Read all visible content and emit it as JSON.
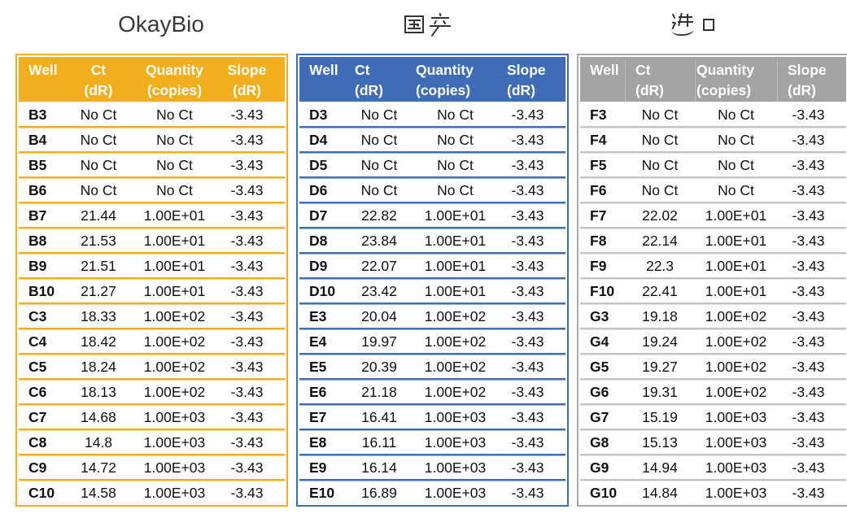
{
  "figure": {
    "background": "#FFFFFF",
    "title_color": "#3A3A3A"
  },
  "chart_data": [
    {
      "type": "table",
      "title": "OkayBio",
      "theme": {
        "header_bg": "#F1AE1D",
        "header_text": "#FFFFFF",
        "row_line": "#F1AE1D",
        "outer_border": "#F1AE1D"
      },
      "header_align": "center",
      "header_separators": false,
      "columns": [
        {
          "line1": "Well",
          "line2": ""
        },
        {
          "line1": "Ct",
          "line2": "(dR)"
        },
        {
          "line1": "Quantity",
          "line2": "(copies)"
        },
        {
          "line1": "Slope",
          "line2": "(dR)"
        }
      ],
      "rows": [
        [
          "B3",
          "No Ct",
          "No Ct",
          "-3.43"
        ],
        [
          "B4",
          "No Ct",
          "No Ct",
          "-3.43"
        ],
        [
          "B5",
          "No Ct",
          "No Ct",
          "-3.43"
        ],
        [
          "B6",
          "No Ct",
          "No Ct",
          "-3.43"
        ],
        [
          "B7",
          "21.44",
          "1.00E+01",
          "-3.43"
        ],
        [
          "B8",
          "21.53",
          "1.00E+01",
          "-3.43"
        ],
        [
          "B9",
          "21.51",
          "1.00E+01",
          "-3.43"
        ],
        [
          "B10",
          "21.27",
          "1.00E+01",
          "-3.43"
        ],
        [
          "C3",
          "18.33",
          "1.00E+02",
          "-3.43"
        ],
        [
          "C4",
          "18.42",
          "1.00E+02",
          "-3.43"
        ],
        [
          "C5",
          "18.24",
          "1.00E+02",
          "-3.43"
        ],
        [
          "C6",
          "18.13",
          "1.00E+02",
          "-3.43"
        ],
        [
          "C7",
          "14.68",
          "1.00E+03",
          "-3.43"
        ],
        [
          "C8",
          "14.8",
          "1.00E+03",
          "-3.43"
        ],
        [
          "C9",
          "14.72",
          "1.00E+03",
          "-3.43"
        ],
        [
          "C10",
          "14.58",
          "1.00E+03",
          "-3.43"
        ]
      ]
    },
    {
      "type": "table",
      "title": "国产",
      "theme": {
        "header_bg": "#3E6DB5",
        "header_text": "#FFFFFF",
        "row_line": "#3E6DB5",
        "outer_border": "#3E6DB5"
      },
      "header_align": "left",
      "header_separators": false,
      "columns": [
        {
          "line1": "Well",
          "line2": ""
        },
        {
          "line1": "Ct",
          "line2": "(dR)"
        },
        {
          "line1": "Quantity",
          "line2": "(copies)"
        },
        {
          "line1": "Slope",
          "line2": "(dR)"
        }
      ],
      "rows": [
        [
          "D3",
          "No Ct",
          "No Ct",
          "-3.43"
        ],
        [
          "D4",
          "No Ct",
          "No Ct",
          "-3.43"
        ],
        [
          "D5",
          "No Ct",
          "No Ct",
          "-3.43"
        ],
        [
          "D6",
          "No Ct",
          "No Ct",
          "-3.43"
        ],
        [
          "D7",
          "22.82",
          "1.00E+01",
          "-3.43"
        ],
        [
          "D8",
          "23.84",
          "1.00E+01",
          "-3.43"
        ],
        [
          "D9",
          "22.07",
          "1.00E+01",
          "-3.43"
        ],
        [
          "D10",
          "23.42",
          "1.00E+01",
          "-3.43"
        ],
        [
          "E3",
          "20.04",
          "1.00E+02",
          "-3.43"
        ],
        [
          "E4",
          "19.97",
          "1.00E+02",
          "-3.43"
        ],
        [
          "E5",
          "20.39",
          "1.00E+02",
          "-3.43"
        ],
        [
          "E6",
          "21.18",
          "1.00E+02",
          "-3.43"
        ],
        [
          "E7",
          "16.41",
          "1.00E+03",
          "-3.43"
        ],
        [
          "E8",
          "16.11",
          "1.00E+03",
          "-3.43"
        ],
        [
          "E9",
          "16.14",
          "1.00E+03",
          "-3.43"
        ],
        [
          "E10",
          "16.89",
          "1.00E+03",
          "-3.43"
        ]
      ]
    },
    {
      "type": "table",
      "title": "进口",
      "theme": {
        "header_bg": "#A3A3A3",
        "header_text": "#FFFFFF",
        "row_line": "#C4C4C4",
        "outer_border": "#A8A8A8"
      },
      "header_align": "left",
      "header_separators": true,
      "columns": [
        {
          "line1": "Well",
          "line2": ""
        },
        {
          "line1": "Ct",
          "line2": "(dR)"
        },
        {
          "line1": "Quantity",
          "line2": "(copies)"
        },
        {
          "line1": "Slope",
          "line2": "(dR)"
        }
      ],
      "rows": [
        [
          "F3",
          "No Ct",
          "No Ct",
          "-3.43"
        ],
        [
          "F4",
          "No Ct",
          "No Ct",
          "-3.43"
        ],
        [
          "F5",
          "No Ct",
          "No Ct",
          "-3.43"
        ],
        [
          "F6",
          "No Ct",
          "No Ct",
          "-3.43"
        ],
        [
          "F7",
          "22.02",
          "1.00E+01",
          "-3.43"
        ],
        [
          "F8",
          "22.14",
          "1.00E+01",
          "-3.43"
        ],
        [
          "F9",
          "22.3",
          "1.00E+01",
          "-3.43"
        ],
        [
          "F10",
          "22.41",
          "1.00E+01",
          "-3.43"
        ],
        [
          "G3",
          "19.18",
          "1.00E+02",
          "-3.43"
        ],
        [
          "G4",
          "19.24",
          "1.00E+02",
          "-3.43"
        ],
        [
          "G5",
          "19.27",
          "1.00E+02",
          "-3.43"
        ],
        [
          "G6",
          "19.31",
          "1.00E+02",
          "-3.43"
        ],
        [
          "G7",
          "15.19",
          "1.00E+03",
          "-3.43"
        ],
        [
          "G8",
          "15.13",
          "1.00E+03",
          "-3.43"
        ],
        [
          "G9",
          "14.94",
          "1.00E+03",
          "-3.43"
        ],
        [
          "G10",
          "14.84",
          "1.00E+03",
          "-3.43"
        ]
      ]
    }
  ]
}
